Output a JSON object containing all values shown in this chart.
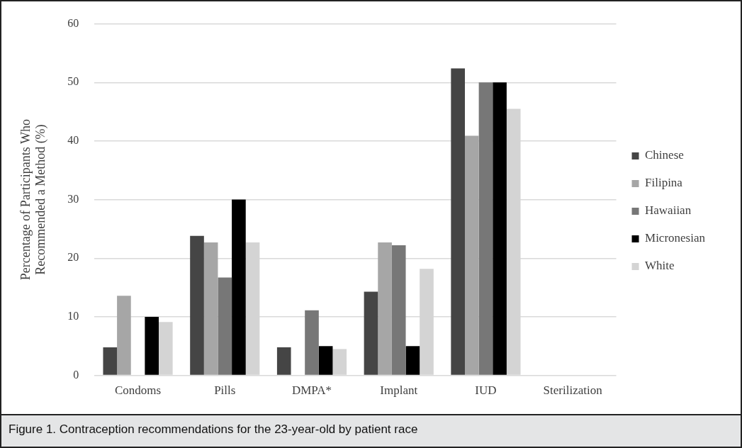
{
  "chart_data": {
    "type": "bar",
    "ylabel": "Percentage of Participants Who Recommended a Method (%)",
    "annotations": [
      "Figure 1. Contraception recommendations for the 23-year-old by patient race"
    ],
    "categories": [
      "Condoms",
      "Pills",
      "DMPA*",
      "Implant",
      "IUD",
      "Sterilization"
    ],
    "series": [
      {
        "name": "Chinese",
        "color": "#454545",
        "values": [
          4.8,
          23.8,
          4.8,
          14.3,
          52.4,
          0
        ]
      },
      {
        "name": "Filipina",
        "color": "#a6a6a6",
        "values": [
          13.6,
          22.7,
          0,
          22.7,
          40.9,
          0
        ]
      },
      {
        "name": "Hawaiian",
        "color": "#777777",
        "values": [
          0,
          16.7,
          11.1,
          22.2,
          50,
          0
        ]
      },
      {
        "name": "Micronesian",
        "color": "#000000",
        "values": [
          10,
          30,
          5,
          5,
          50,
          0
        ]
      },
      {
        "name": "White",
        "color": "#d4d4d4",
        "values": [
          9.1,
          22.7,
          4.5,
          18.2,
          45.5,
          0
        ]
      }
    ],
    "ylim": [
      0,
      60
    ],
    "yticks": [
      0,
      10,
      20,
      30,
      40,
      50,
      60
    ],
    "grid": "y",
    "legend": "right"
  }
}
